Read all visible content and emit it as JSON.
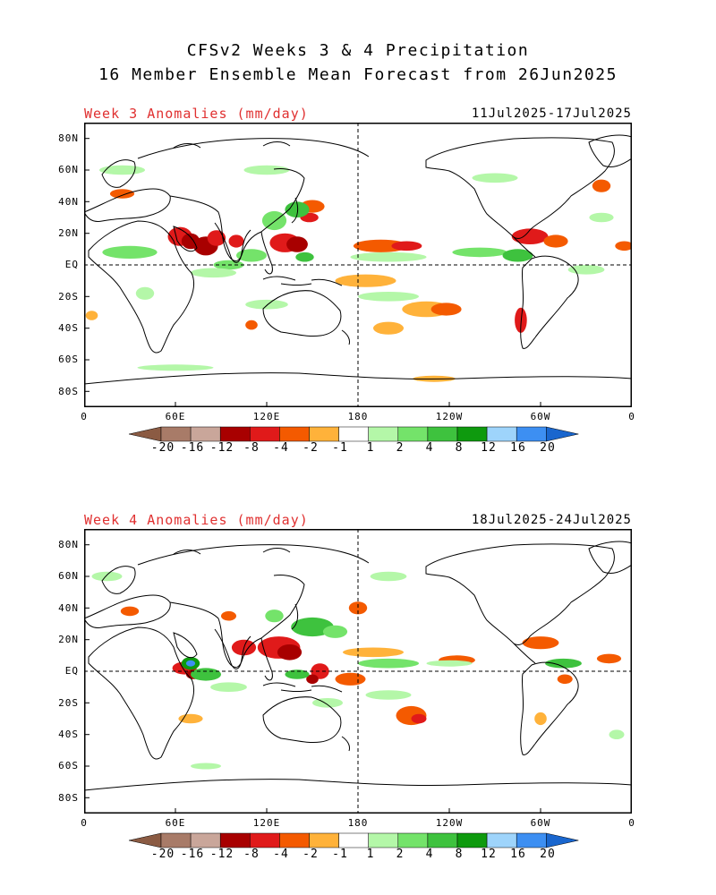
{
  "header": {
    "title_line1": "CFSv2 Weeks 3 & 4 Precipitation",
    "title_line2": "16 Member Ensemble Mean Forecast from 26Jun2025"
  },
  "panels": [
    {
      "title": "Week 3 Anomalies (mm/day)",
      "date_range": "11Jul2025-17Jul2025",
      "lat_labels": [
        "80N",
        "60N",
        "40N",
        "20N",
        "EQ",
        "20S",
        "40S",
        "60S",
        "80S"
      ],
      "lon_labels": [
        "0",
        "60E",
        "120E",
        "180",
        "120W",
        "60W",
        "0"
      ],
      "anomalies": [
        {
          "lon": 63,
          "lat": 18,
          "rx": 8,
          "ry": 6,
          "cat": "neg4"
        },
        {
          "lon": 70,
          "lat": 15,
          "rx": 6,
          "ry": 5,
          "cat": "neg8"
        },
        {
          "lon": 80,
          "lat": 12,
          "rx": 8,
          "ry": 6,
          "cat": "neg8"
        },
        {
          "lon": 87,
          "lat": 17,
          "rx": 6,
          "ry": 5,
          "cat": "neg4"
        },
        {
          "lon": 100,
          "lat": 15,
          "rx": 5,
          "ry": 4,
          "cat": "neg4"
        },
        {
          "lon": 132,
          "lat": 14,
          "rx": 10,
          "ry": 6,
          "cat": "neg4"
        },
        {
          "lon": 140,
          "lat": 13,
          "rx": 7,
          "ry": 5,
          "cat": "neg8"
        },
        {
          "lon": 150,
          "lat": 37,
          "rx": 8,
          "ry": 4,
          "cat": "neg2"
        },
        {
          "lon": 148,
          "lat": 30,
          "rx": 6,
          "ry": 3,
          "cat": "neg4"
        },
        {
          "lon": 195,
          "lat": 12,
          "rx": 18,
          "ry": 4,
          "cat": "neg2"
        },
        {
          "lon": 212,
          "lat": 12,
          "rx": 10,
          "ry": 3,
          "cat": "neg4"
        },
        {
          "lon": 293,
          "lat": 18,
          "rx": 12,
          "ry": 5,
          "cat": "neg4"
        },
        {
          "lon": 310,
          "lat": 15,
          "rx": 8,
          "ry": 4,
          "cat": "neg2"
        },
        {
          "lon": 355,
          "lat": 12,
          "rx": 6,
          "ry": 3,
          "cat": "neg2"
        },
        {
          "lon": 25,
          "lat": 45,
          "rx": 8,
          "ry": 3,
          "cat": "neg2"
        },
        {
          "lon": 340,
          "lat": 50,
          "rx": 6,
          "ry": 4,
          "cat": "neg2"
        },
        {
          "lon": 185,
          "lat": -10,
          "rx": 20,
          "ry": 4,
          "cat": "neg1"
        },
        {
          "lon": 225,
          "lat": -28,
          "rx": 16,
          "ry": 5,
          "cat": "neg1"
        },
        {
          "lon": 238,
          "lat": -28,
          "rx": 10,
          "ry": 4,
          "cat": "neg2"
        },
        {
          "lon": 200,
          "lat": -40,
          "rx": 10,
          "ry": 4,
          "cat": "neg1"
        },
        {
          "lon": 287,
          "lat": -35,
          "rx": 4,
          "ry": 8,
          "cat": "neg4"
        },
        {
          "lon": 5,
          "lat": -32,
          "rx": 4,
          "ry": 3,
          "cat": "neg1"
        },
        {
          "lon": 110,
          "lat": -38,
          "rx": 4,
          "ry": 3,
          "cat": "neg2"
        },
        {
          "lon": 230,
          "lat": -72,
          "rx": 14,
          "ry": 2,
          "cat": "neg1"
        },
        {
          "lon": 110,
          "lat": 6,
          "rx": 10,
          "ry": 4,
          "cat": "pos2"
        },
        {
          "lon": 140,
          "lat": 35,
          "rx": 8,
          "ry": 5,
          "cat": "pos4"
        },
        {
          "lon": 125,
          "lat": 28,
          "rx": 8,
          "ry": 6,
          "cat": "pos2"
        },
        {
          "lon": 95,
          "lat": 0,
          "rx": 10,
          "ry": 3,
          "cat": "pos2"
        },
        {
          "lon": 145,
          "lat": 5,
          "rx": 6,
          "ry": 3,
          "cat": "pos4"
        },
        {
          "lon": 30,
          "lat": 8,
          "rx": 18,
          "ry": 4,
          "cat": "pos2"
        },
        {
          "lon": 85,
          "lat": -5,
          "rx": 15,
          "ry": 3,
          "cat": "pos1"
        },
        {
          "lon": 200,
          "lat": 5,
          "rx": 25,
          "ry": 3,
          "cat": "pos1"
        },
        {
          "lon": 260,
          "lat": 8,
          "rx": 18,
          "ry": 3,
          "cat": "pos2"
        },
        {
          "lon": 285,
          "lat": 6,
          "rx": 10,
          "ry": 4,
          "cat": "pos4"
        },
        {
          "lon": 330,
          "lat": -3,
          "rx": 12,
          "ry": 3,
          "cat": "pos1"
        },
        {
          "lon": 120,
          "lat": -25,
          "rx": 14,
          "ry": 3,
          "cat": "pos1"
        },
        {
          "lon": 200,
          "lat": -20,
          "rx": 20,
          "ry": 3,
          "cat": "pos1"
        },
        {
          "lon": 60,
          "lat": -65,
          "rx": 25,
          "ry": 2,
          "cat": "pos1"
        },
        {
          "lon": 25,
          "lat": 60,
          "rx": 15,
          "ry": 3,
          "cat": "pos1"
        },
        {
          "lon": 120,
          "lat": 60,
          "rx": 15,
          "ry": 3,
          "cat": "pos1"
        },
        {
          "lon": 270,
          "lat": 55,
          "rx": 15,
          "ry": 3,
          "cat": "pos1"
        },
        {
          "lon": 40,
          "lat": -18,
          "rx": 6,
          "ry": 4,
          "cat": "pos1"
        },
        {
          "lon": 340,
          "lat": 30,
          "rx": 8,
          "ry": 3,
          "cat": "pos1"
        }
      ]
    },
    {
      "title": "Week 4 Anomalies (mm/day)",
      "date_range": "18Jul2025-24Jul2025",
      "lat_labels": [
        "80N",
        "60N",
        "40N",
        "20N",
        "EQ",
        "20S",
        "40S",
        "60S",
        "80S"
      ],
      "lon_labels": [
        "0",
        "60E",
        "120E",
        "180",
        "120W",
        "60W",
        "0"
      ],
      "anomalies": [
        {
          "lon": 66,
          "lat": 2,
          "rx": 8,
          "ry": 4,
          "cat": "neg4"
        },
        {
          "lon": 72,
          "lat": -2,
          "rx": 5,
          "ry": 3,
          "cat": "neg8"
        },
        {
          "lon": 105,
          "lat": 15,
          "rx": 8,
          "ry": 5,
          "cat": "neg4"
        },
        {
          "lon": 128,
          "lat": 15,
          "rx": 14,
          "ry": 7,
          "cat": "neg4"
        },
        {
          "lon": 135,
          "lat": 12,
          "rx": 8,
          "ry": 5,
          "cat": "neg8"
        },
        {
          "lon": 155,
          "lat": 0,
          "rx": 6,
          "ry": 5,
          "cat": "neg4"
        },
        {
          "lon": 150,
          "lat": -5,
          "rx": 4,
          "ry": 3,
          "cat": "neg8"
        },
        {
          "lon": 175,
          "lat": -5,
          "rx": 10,
          "ry": 4,
          "cat": "neg2"
        },
        {
          "lon": 215,
          "lat": -28,
          "rx": 10,
          "ry": 6,
          "cat": "neg2"
        },
        {
          "lon": 220,
          "lat": -30,
          "rx": 5,
          "ry": 3,
          "cat": "neg4"
        },
        {
          "lon": 190,
          "lat": 12,
          "rx": 20,
          "ry": 3,
          "cat": "neg1"
        },
        {
          "lon": 245,
          "lat": 7,
          "rx": 12,
          "ry": 3,
          "cat": "neg2"
        },
        {
          "lon": 300,
          "lat": 18,
          "rx": 12,
          "ry": 4,
          "cat": "neg2"
        },
        {
          "lon": 345,
          "lat": 8,
          "rx": 8,
          "ry": 3,
          "cat": "neg2"
        },
        {
          "lon": 180,
          "lat": 40,
          "rx": 6,
          "ry": 4,
          "cat": "neg2"
        },
        {
          "lon": 30,
          "lat": 38,
          "rx": 6,
          "ry": 3,
          "cat": "neg2"
        },
        {
          "lon": 95,
          "lat": 35,
          "rx": 5,
          "ry": 3,
          "cat": "neg2"
        },
        {
          "lon": 316,
          "lat": -5,
          "rx": 5,
          "ry": 3,
          "cat": "neg2"
        },
        {
          "lon": 300,
          "lat": -30,
          "rx": 4,
          "ry": 4,
          "cat": "neg1"
        },
        {
          "lon": 70,
          "lat": -30,
          "rx": 8,
          "ry": 3,
          "cat": "neg1"
        },
        {
          "lon": 70,
          "lat": 5,
          "rx": 6,
          "ry": 4,
          "cat": "pos8"
        },
        {
          "lon": 70,
          "lat": 5,
          "rx": 3,
          "ry": 2,
          "cat": "pos16"
        },
        {
          "lon": 80,
          "lat": -2,
          "rx": 10,
          "ry": 4,
          "cat": "pos4"
        },
        {
          "lon": 150,
          "lat": 28,
          "rx": 14,
          "ry": 6,
          "cat": "pos4"
        },
        {
          "lon": 165,
          "lat": 25,
          "rx": 8,
          "ry": 4,
          "cat": "pos2"
        },
        {
          "lon": 125,
          "lat": 35,
          "rx": 6,
          "ry": 4,
          "cat": "pos2"
        },
        {
          "lon": 140,
          "lat": -2,
          "rx": 8,
          "ry": 3,
          "cat": "pos4"
        },
        {
          "lon": 200,
          "lat": 5,
          "rx": 20,
          "ry": 3,
          "cat": "pos2"
        },
        {
          "lon": 240,
          "lat": 5,
          "rx": 15,
          "ry": 2,
          "cat": "pos1"
        },
        {
          "lon": 315,
          "lat": 5,
          "rx": 12,
          "ry": 3,
          "cat": "pos4"
        },
        {
          "lon": 95,
          "lat": -10,
          "rx": 12,
          "ry": 3,
          "cat": "pos1"
        },
        {
          "lon": 160,
          "lat": -20,
          "rx": 10,
          "ry": 3,
          "cat": "pos1"
        },
        {
          "lon": 200,
          "lat": -15,
          "rx": 15,
          "ry": 3,
          "cat": "pos1"
        },
        {
          "lon": 80,
          "lat": -60,
          "rx": 10,
          "ry": 2,
          "cat": "pos1"
        },
        {
          "lon": 15,
          "lat": 60,
          "rx": 10,
          "ry": 3,
          "cat": "pos1"
        },
        {
          "lon": 200,
          "lat": 60,
          "rx": 12,
          "ry": 3,
          "cat": "pos1"
        },
        {
          "lon": 350,
          "lat": -40,
          "rx": 5,
          "ry": 3,
          "cat": "pos1"
        }
      ]
    }
  ],
  "colorbar": {
    "labels": [
      "-20",
      "-16",
      "-12",
      "-8",
      "-4",
      "-2",
      "-1",
      "1",
      "2",
      "4",
      "8",
      "12",
      "16",
      "20"
    ],
    "colors": [
      "#8b5b43",
      "#a87b68",
      "#c9a69a",
      "#a80000",
      "#e01a1a",
      "#f45a00",
      "#ffb23a",
      "#ffffff",
      "#b4f7a8",
      "#74e36a",
      "#3ec23e",
      "#0e9a0e",
      "#9ed4fb",
      "#3d8ff2",
      "#1966ce"
    ]
  },
  "category_colors": {
    "neg1": "#ffb23a",
    "neg2": "#f45a00",
    "neg4": "#e01a1a",
    "neg8": "#a80000",
    "pos1": "#b4f7a8",
    "pos2": "#74e36a",
    "pos4": "#3ec23e",
    "pos8": "#0e9a0e",
    "pos16": "#3d8ff2"
  }
}
